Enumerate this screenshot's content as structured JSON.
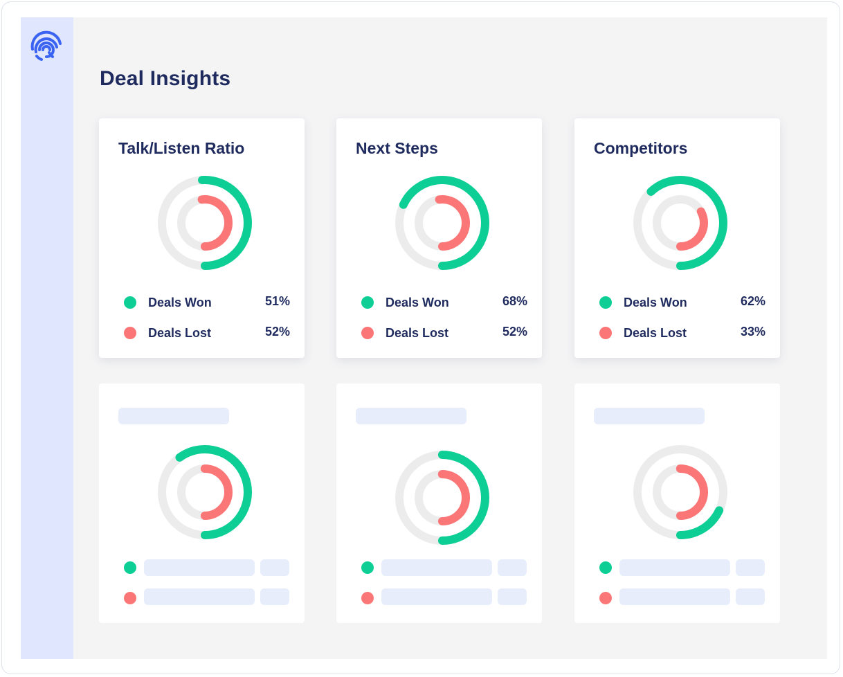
{
  "page": {
    "title": "Deal Insights"
  },
  "colors": {
    "won": "#0dcf95",
    "lost": "#fb7676",
    "track": "#ececec",
    "brand": "#3b63f2"
  },
  "icons": {
    "logo": "fingerprint-logo-icon"
  },
  "cards": [
    {
      "title": "Talk/Listen Ratio",
      "won": {
        "label": "Deals Won",
        "value": "51%",
        "ring": 0.51
      },
      "lost": {
        "label": "Deals Lost",
        "value": "52%",
        "ring": 0.52
      }
    },
    {
      "title": "Next Steps",
      "won": {
        "label": "Deals Won",
        "value": "68%",
        "ring": 0.68
      },
      "lost": {
        "label": "Deals Lost",
        "value": "52%",
        "ring": 0.52
      }
    },
    {
      "title": "Competitors",
      "won": {
        "label": "Deals Won",
        "value": "62%",
        "ring": 0.62
      },
      "lost": {
        "label": "Deals Lost",
        "value": "33%",
        "ring": 0.33
      }
    }
  ],
  "placeholder_cards": [
    {
      "won_ring": 0.6,
      "lost_ring": 0.5
    },
    {
      "won_ring": 0.5,
      "lost_ring": 0.5
    },
    {
      "won_ring": 0.18,
      "lost_ring": 0.5
    }
  ]
}
